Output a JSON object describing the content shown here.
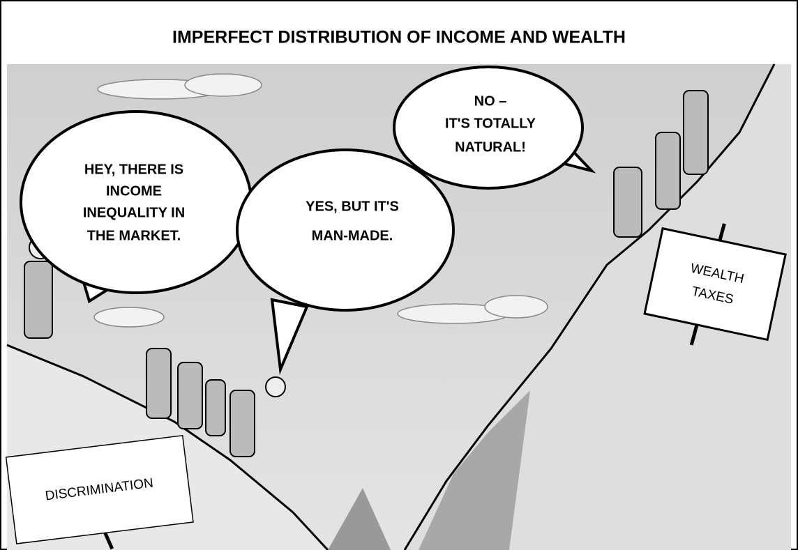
{
  "title": "IMPERFECT DISTRIBUTION OF INCOME AND WEALTH",
  "bubbles": [
    {
      "lines": [
        "HEY, THERE IS",
        "INCOME",
        "INEQUALITY IN",
        "THE MARKET."
      ]
    },
    {
      "lines": [
        "YES, BUT IT'S",
        "MAN-MADE."
      ]
    },
    {
      "lines": [
        "NO –",
        "IT'S TOTALLY",
        "NATURAL!"
      ]
    }
  ],
  "signs": [
    {
      "lines": [
        "DISCRIMINATION"
      ]
    },
    {
      "lines": [
        "WEALTH",
        "TAXES"
      ]
    }
  ]
}
